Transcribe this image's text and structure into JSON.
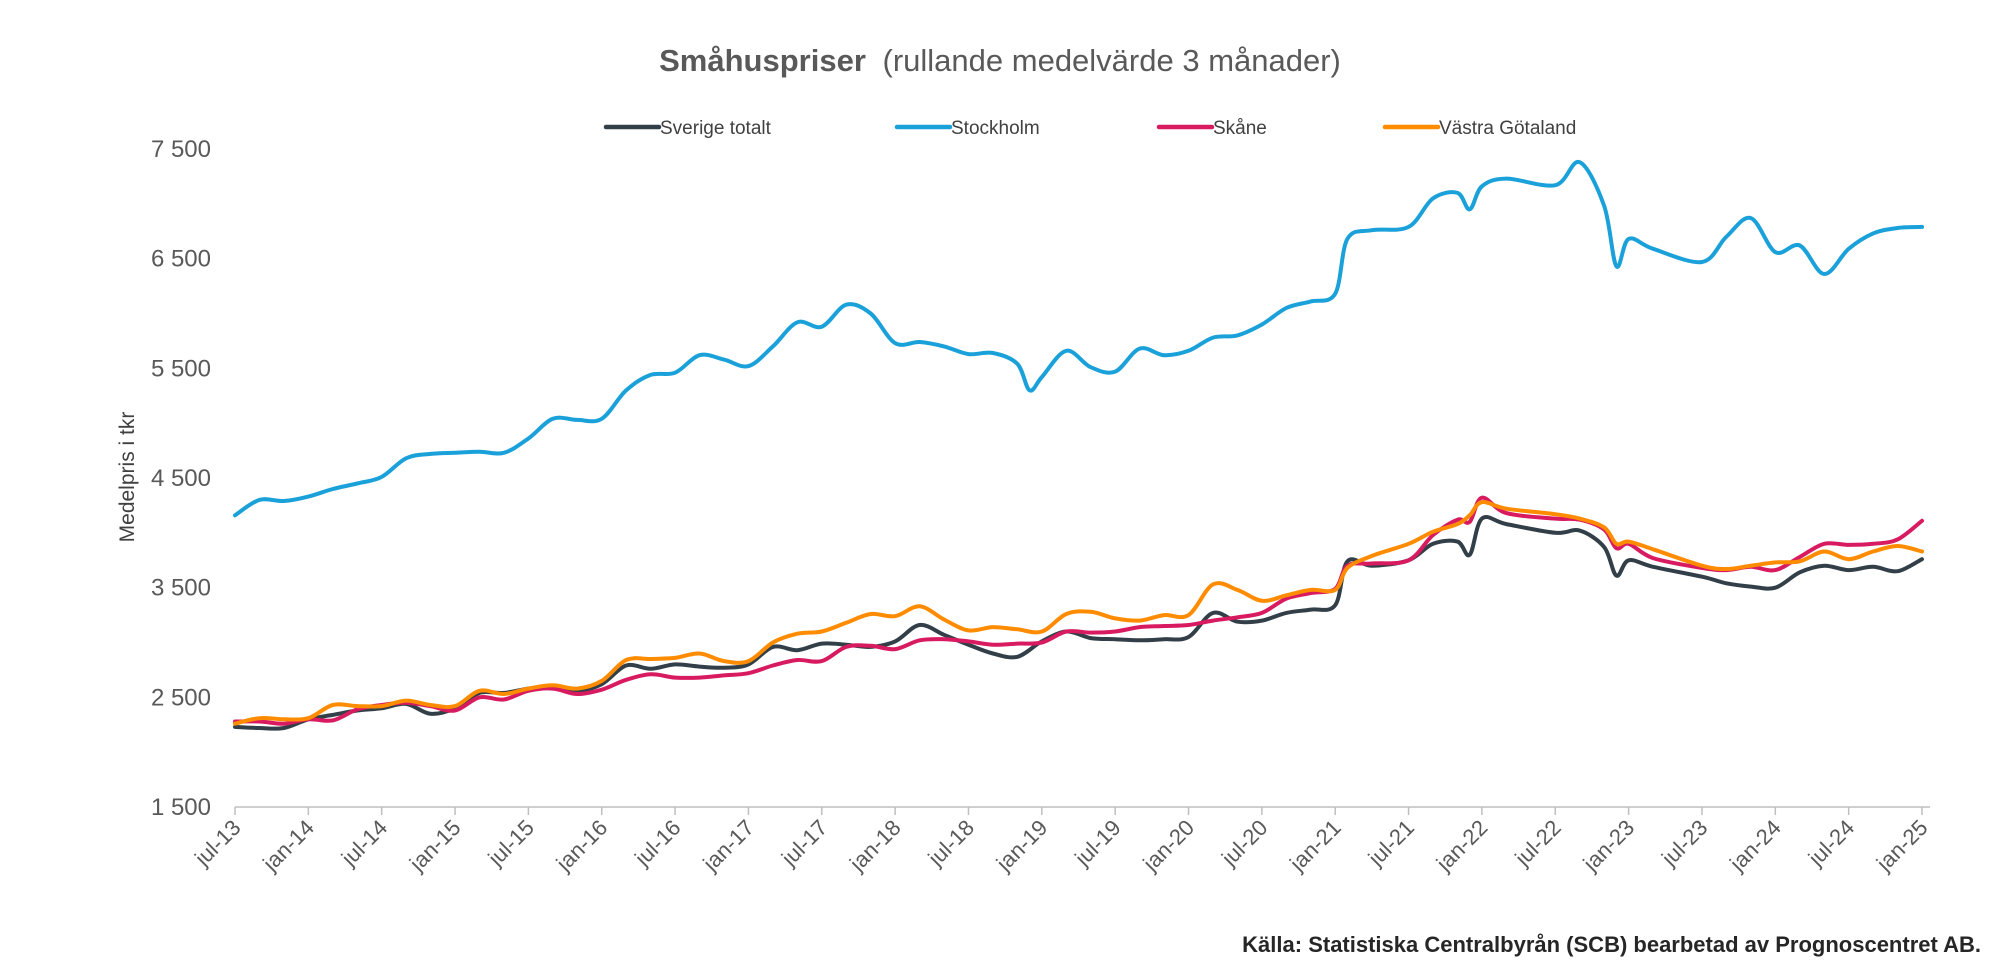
{
  "chart_data": {
    "type": "line",
    "title_bold": "Småhuspriser",
    "title_rest": "(rullande medelvärde 3 månader)",
    "xlabel": "",
    "ylabel": "Medelpris i tkr",
    "ylim": [
      1500,
      7500
    ],
    "yticks": [
      1500,
      2500,
      3500,
      4500,
      5500,
      6500,
      7500
    ],
    "ytick_labels": [
      "1 500",
      "2 500",
      "3 500",
      "4 500",
      "5 500",
      "6 500",
      "7 500"
    ],
    "x_start": "jul-13",
    "x_end": "jan-25",
    "x_tick_labels": [
      "jul-13",
      "jan-14",
      "jul-14",
      "jan-15",
      "jul-15",
      "jan-16",
      "jul-16",
      "jan-17",
      "jul-17",
      "jan-18",
      "jul-18",
      "jan-19",
      "jul-19",
      "jan-20",
      "jul-20",
      "jan-21",
      "jul-21",
      "jan-22",
      "jul-22",
      "jan-23",
      "jul-23",
      "jan-24",
      "jul-24",
      "jan-25"
    ],
    "grid": false,
    "legend_position": "top",
    "source": "Källa: Statistiska Centralbyrån (SCB) bearbetad av Prognoscentret AB.",
    "series": [
      {
        "name": "Sverige totalt",
        "color": "#333F48",
        "values": [
          [
            "jul-13",
            2230
          ],
          [
            "sep-13",
            2220
          ],
          [
            "nov-13",
            2220
          ],
          [
            "jan-14",
            2300
          ],
          [
            "mar-14",
            2340
          ],
          [
            "may-14",
            2380
          ],
          [
            "jul-14",
            2400
          ],
          [
            "sep-14",
            2440
          ],
          [
            "nov-14",
            2350
          ],
          [
            "jan-15",
            2400
          ],
          [
            "mar-15",
            2540
          ],
          [
            "may-15",
            2540
          ],
          [
            "jul-15",
            2580
          ],
          [
            "sep-15",
            2600
          ],
          [
            "nov-15",
            2560
          ],
          [
            "jan-16",
            2620
          ],
          [
            "mar-16",
            2790
          ],
          [
            "may-16",
            2760
          ],
          [
            "jul-16",
            2800
          ],
          [
            "sep-16",
            2780
          ],
          [
            "nov-16",
            2770
          ],
          [
            "jan-17",
            2800
          ],
          [
            "mar-17",
            2960
          ],
          [
            "may-17",
            2930
          ],
          [
            "jul-17",
            2990
          ],
          [
            "sep-17",
            2980
          ],
          [
            "nov-17",
            2960
          ],
          [
            "jan-18",
            3010
          ],
          [
            "mar-18",
            3160
          ],
          [
            "may-18",
            3070
          ],
          [
            "jul-18",
            2980
          ],
          [
            "sep-18",
            2900
          ],
          [
            "nov-18",
            2870
          ],
          [
            "jan-19",
            3010
          ],
          [
            "mar-19",
            3100
          ],
          [
            "may-19",
            3040
          ],
          [
            "jul-19",
            3030
          ],
          [
            "sep-19",
            3020
          ],
          [
            "nov-19",
            3030
          ],
          [
            "jan-20",
            3050
          ],
          [
            "mar-20",
            3270
          ],
          [
            "may-20",
            3190
          ],
          [
            "jul-20",
            3200
          ],
          [
            "sep-20",
            3270
          ],
          [
            "nov-20",
            3300
          ],
          [
            "jan-21",
            3340
          ],
          [
            "feb-21",
            3740
          ],
          [
            "apr-21",
            3700
          ],
          [
            "jul-21",
            3750
          ],
          [
            "sep-21",
            3900
          ],
          [
            "nov-21",
            3920
          ],
          [
            "dec-21",
            3800
          ],
          [
            "jan-22",
            4130
          ],
          [
            "mar-22",
            4080
          ],
          [
            "jul-22",
            4000
          ],
          [
            "sep-22",
            4020
          ],
          [
            "nov-22",
            3870
          ],
          [
            "dec-22",
            3610
          ],
          [
            "jan-23",
            3750
          ],
          [
            "mar-23",
            3690
          ],
          [
            "jul-23",
            3600
          ],
          [
            "sep-23",
            3540
          ],
          [
            "nov-23",
            3510
          ],
          [
            "jan-24",
            3500
          ],
          [
            "mar-24",
            3640
          ],
          [
            "may-24",
            3700
          ],
          [
            "jul-24",
            3660
          ],
          [
            "sep-24",
            3690
          ],
          [
            "nov-24",
            3650
          ],
          [
            "jan-25",
            3760
          ]
        ]
      },
      {
        "name": "Stockholm",
        "color": "#1BA1D9",
        "values": [
          [
            "jul-13",
            4160
          ],
          [
            "sep-13",
            4300
          ],
          [
            "nov-13",
            4290
          ],
          [
            "jan-14",
            4330
          ],
          [
            "mar-14",
            4400
          ],
          [
            "may-14",
            4450
          ],
          [
            "jul-14",
            4510
          ],
          [
            "sep-14",
            4680
          ],
          [
            "nov-14",
            4720
          ],
          [
            "jan-15",
            4730
          ],
          [
            "mar-15",
            4740
          ],
          [
            "may-15",
            4730
          ],
          [
            "jul-15",
            4860
          ],
          [
            "sep-15",
            5040
          ],
          [
            "nov-15",
            5030
          ],
          [
            "jan-16",
            5040
          ],
          [
            "mar-16",
            5300
          ],
          [
            "may-16",
            5440
          ],
          [
            "jul-16",
            5460
          ],
          [
            "sep-16",
            5620
          ],
          [
            "nov-16",
            5580
          ],
          [
            "jan-17",
            5520
          ],
          [
            "mar-17",
            5700
          ],
          [
            "may-17",
            5920
          ],
          [
            "jul-17",
            5880
          ],
          [
            "sep-17",
            6080
          ],
          [
            "nov-17",
            6000
          ],
          [
            "jan-18",
            5730
          ],
          [
            "mar-18",
            5740
          ],
          [
            "may-18",
            5700
          ],
          [
            "jul-18",
            5630
          ],
          [
            "sep-18",
            5640
          ],
          [
            "nov-18",
            5540
          ],
          [
            "dec-18",
            5300
          ],
          [
            "jan-19",
            5420
          ],
          [
            "mar-19",
            5660
          ],
          [
            "may-19",
            5510
          ],
          [
            "jul-19",
            5470
          ],
          [
            "sep-19",
            5680
          ],
          [
            "nov-19",
            5620
          ],
          [
            "jan-20",
            5660
          ],
          [
            "mar-20",
            5780
          ],
          [
            "may-20",
            5800
          ],
          [
            "jul-20",
            5900
          ],
          [
            "sep-20",
            6050
          ],
          [
            "nov-20",
            6110
          ],
          [
            "jan-21",
            6180
          ],
          [
            "feb-21",
            6680
          ],
          [
            "apr-21",
            6760
          ],
          [
            "jul-21",
            6790
          ],
          [
            "sep-21",
            7050
          ],
          [
            "nov-21",
            7100
          ],
          [
            "dec-21",
            6950
          ],
          [
            "jan-22",
            7160
          ],
          [
            "mar-22",
            7230
          ],
          [
            "jul-22",
            7170
          ],
          [
            "sep-22",
            7380
          ],
          [
            "nov-22",
            6980
          ],
          [
            "dec-22",
            6430
          ],
          [
            "jan-23",
            6680
          ],
          [
            "mar-23",
            6590
          ],
          [
            "jul-23",
            6470
          ],
          [
            "sep-23",
            6700
          ],
          [
            "nov-23",
            6870
          ],
          [
            "jan-24",
            6560
          ],
          [
            "mar-24",
            6620
          ],
          [
            "may-24",
            6360
          ],
          [
            "jul-24",
            6590
          ],
          [
            "sep-24",
            6730
          ],
          [
            "nov-24",
            6780
          ],
          [
            "jan-25",
            6790
          ]
        ]
      },
      {
        "name": "Skåne",
        "color": "#D81B60",
        "values": [
          [
            "jul-13",
            2280
          ],
          [
            "sep-13",
            2280
          ],
          [
            "nov-13",
            2260
          ],
          [
            "jan-14",
            2300
          ],
          [
            "mar-14",
            2290
          ],
          [
            "may-14",
            2390
          ],
          [
            "jul-14",
            2430
          ],
          [
            "sep-14",
            2450
          ],
          [
            "nov-14",
            2420
          ],
          [
            "jan-15",
            2380
          ],
          [
            "mar-15",
            2500
          ],
          [
            "may-15",
            2480
          ],
          [
            "jul-15",
            2560
          ],
          [
            "sep-15",
            2580
          ],
          [
            "nov-15",
            2530
          ],
          [
            "jan-16",
            2570
          ],
          [
            "mar-16",
            2660
          ],
          [
            "may-16",
            2710
          ],
          [
            "jul-16",
            2680
          ],
          [
            "sep-16",
            2680
          ],
          [
            "nov-16",
            2700
          ],
          [
            "jan-17",
            2720
          ],
          [
            "mar-17",
            2790
          ],
          [
            "may-17",
            2840
          ],
          [
            "jul-17",
            2830
          ],
          [
            "sep-17",
            2960
          ],
          [
            "nov-17",
            2970
          ],
          [
            "jan-18",
            2940
          ],
          [
            "mar-18",
            3020
          ],
          [
            "may-18",
            3030
          ],
          [
            "jul-18",
            3010
          ],
          [
            "sep-18",
            2980
          ],
          [
            "nov-18",
            2990
          ],
          [
            "jan-19",
            3000
          ],
          [
            "mar-19",
            3100
          ],
          [
            "may-19",
            3090
          ],
          [
            "jul-19",
            3100
          ],
          [
            "sep-19",
            3140
          ],
          [
            "nov-19",
            3150
          ],
          [
            "jan-20",
            3160
          ],
          [
            "mar-20",
            3200
          ],
          [
            "may-20",
            3230
          ],
          [
            "jul-20",
            3270
          ],
          [
            "sep-20",
            3400
          ],
          [
            "nov-20",
            3450
          ],
          [
            "jan-21",
            3490
          ],
          [
            "feb-21",
            3700
          ],
          [
            "apr-21",
            3720
          ],
          [
            "jul-21",
            3750
          ],
          [
            "sep-21",
            3980
          ],
          [
            "nov-21",
            4120
          ],
          [
            "dec-21",
            4100
          ],
          [
            "jan-22",
            4320
          ],
          [
            "mar-22",
            4180
          ],
          [
            "jul-22",
            4130
          ],
          [
            "sep-22",
            4120
          ],
          [
            "nov-22",
            4030
          ],
          [
            "dec-22",
            3860
          ],
          [
            "jan-23",
            3900
          ],
          [
            "mar-23",
            3770
          ],
          [
            "jul-23",
            3680
          ],
          [
            "sep-23",
            3660
          ],
          [
            "nov-23",
            3690
          ],
          [
            "jan-24",
            3660
          ],
          [
            "mar-24",
            3780
          ],
          [
            "may-24",
            3900
          ],
          [
            "jul-24",
            3890
          ],
          [
            "sep-24",
            3900
          ],
          [
            "nov-24",
            3940
          ],
          [
            "jan-25",
            4110
          ]
        ]
      },
      {
        "name": "Västra Götaland",
        "color": "#FF8C00",
        "values": [
          [
            "jul-13",
            2260
          ],
          [
            "sep-13",
            2310
          ],
          [
            "nov-13",
            2300
          ],
          [
            "jan-14",
            2310
          ],
          [
            "mar-14",
            2430
          ],
          [
            "may-14",
            2420
          ],
          [
            "jul-14",
            2420
          ],
          [
            "sep-14",
            2470
          ],
          [
            "nov-14",
            2430
          ],
          [
            "jan-15",
            2420
          ],
          [
            "mar-15",
            2560
          ],
          [
            "may-15",
            2530
          ],
          [
            "jul-15",
            2580
          ],
          [
            "sep-15",
            2610
          ],
          [
            "nov-15",
            2580
          ],
          [
            "jan-16",
            2650
          ],
          [
            "mar-16",
            2840
          ],
          [
            "may-16",
            2850
          ],
          [
            "jul-16",
            2860
          ],
          [
            "sep-16",
            2900
          ],
          [
            "nov-16",
            2830
          ],
          [
            "jan-17",
            2830
          ],
          [
            "mar-17",
            3000
          ],
          [
            "may-17",
            3080
          ],
          [
            "jul-17",
            3100
          ],
          [
            "sep-17",
            3180
          ],
          [
            "nov-17",
            3260
          ],
          [
            "jan-18",
            3240
          ],
          [
            "mar-18",
            3330
          ],
          [
            "may-18",
            3210
          ],
          [
            "jul-18",
            3110
          ],
          [
            "sep-18",
            3140
          ],
          [
            "nov-18",
            3120
          ],
          [
            "jan-19",
            3100
          ],
          [
            "mar-19",
            3260
          ],
          [
            "may-19",
            3280
          ],
          [
            "jul-19",
            3220
          ],
          [
            "sep-19",
            3200
          ],
          [
            "nov-19",
            3250
          ],
          [
            "jan-20",
            3250
          ],
          [
            "mar-20",
            3530
          ],
          [
            "may-20",
            3480
          ],
          [
            "jul-20",
            3380
          ],
          [
            "sep-20",
            3430
          ],
          [
            "nov-20",
            3480
          ],
          [
            "jan-21",
            3480
          ],
          [
            "feb-21",
            3680
          ],
          [
            "apr-21",
            3790
          ],
          [
            "jul-21",
            3900
          ],
          [
            "sep-21",
            4010
          ],
          [
            "nov-21",
            4080
          ],
          [
            "dec-21",
            4160
          ],
          [
            "jan-22",
            4280
          ],
          [
            "mar-22",
            4220
          ],
          [
            "jul-22",
            4170
          ],
          [
            "sep-22",
            4130
          ],
          [
            "nov-22",
            4050
          ],
          [
            "dec-22",
            3900
          ],
          [
            "jan-23",
            3920
          ],
          [
            "mar-23",
            3850
          ],
          [
            "jul-23",
            3700
          ],
          [
            "sep-23",
            3670
          ],
          [
            "nov-23",
            3700
          ],
          [
            "jan-24",
            3730
          ],
          [
            "mar-24",
            3740
          ],
          [
            "may-24",
            3830
          ],
          [
            "jul-24",
            3760
          ],
          [
            "sep-24",
            3830
          ],
          [
            "nov-24",
            3880
          ],
          [
            "jan-25",
            3830
          ]
        ]
      }
    ]
  }
}
